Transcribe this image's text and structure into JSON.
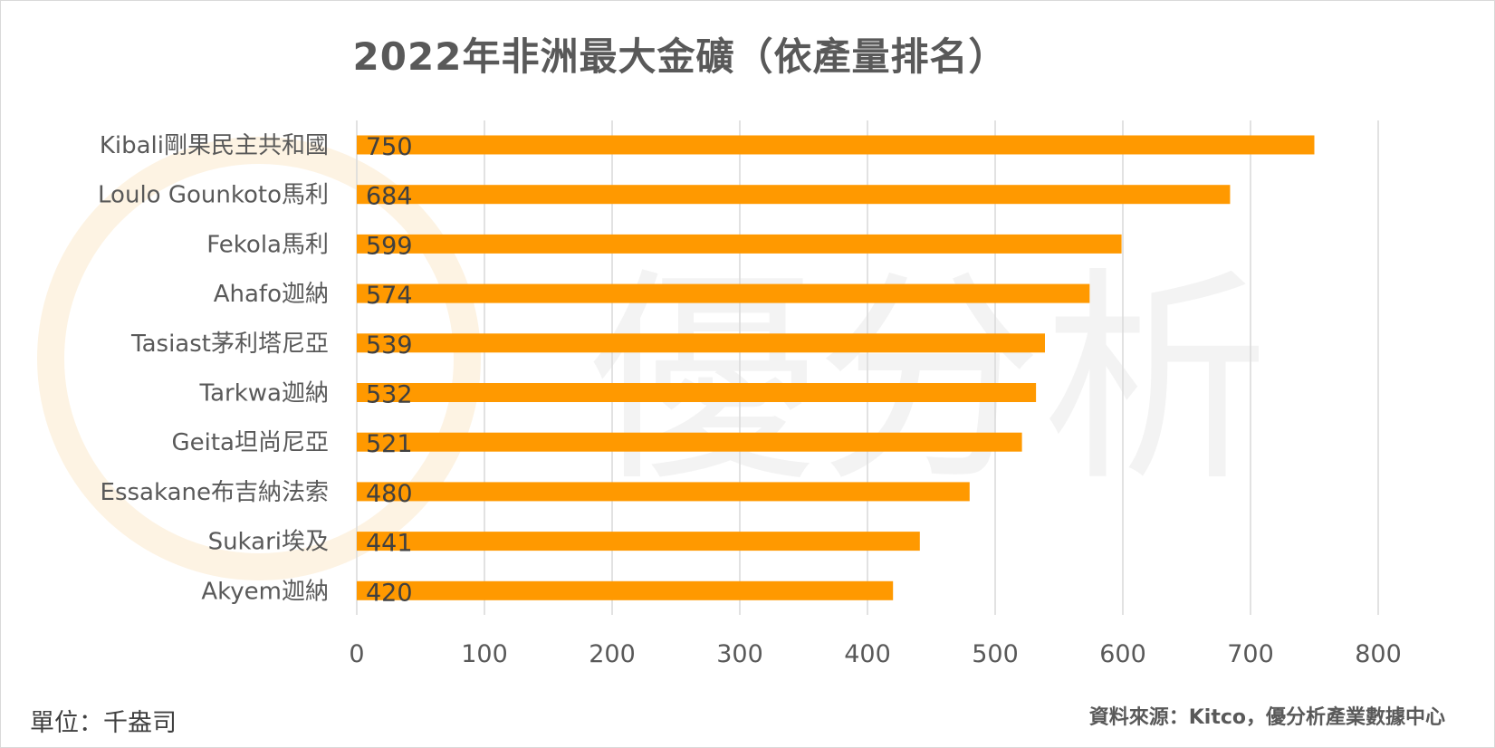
{
  "chart_data": {
    "type": "bar",
    "orientation": "horizontal",
    "title": "2022年非洲最大金礦（依產量排名）",
    "categories": [
      "Kibali剛果民主共和國",
      "Loulo Gounkoto馬利",
      "Fekola馬利",
      "Ahafo迦納",
      "Tasiast茅利塔尼亞",
      "Tarkwa迦納",
      "Geita坦尚尼亞",
      "Essakane布吉納法索",
      "Sukari埃及",
      "Akyem迦納"
    ],
    "values": [
      750,
      684,
      599,
      574,
      539,
      532,
      521,
      480,
      441,
      420
    ],
    "data_labels": [
      "750",
      "684",
      "599",
      "574",
      "539",
      "532",
      "521",
      "480",
      "441",
      "420"
    ],
    "xlim": [
      0,
      800
    ],
    "x_ticks": [
      "0",
      "100",
      "200",
      "300",
      "400",
      "500",
      "600",
      "700",
      "800"
    ],
    "grid": "vertical",
    "bar_color": "#FF9900"
  },
  "footer": {
    "unit": "單位：千盎司",
    "source": "資料來源：Kitco，優分析產業數據中心"
  },
  "watermark": {
    "text": "優分析"
  }
}
